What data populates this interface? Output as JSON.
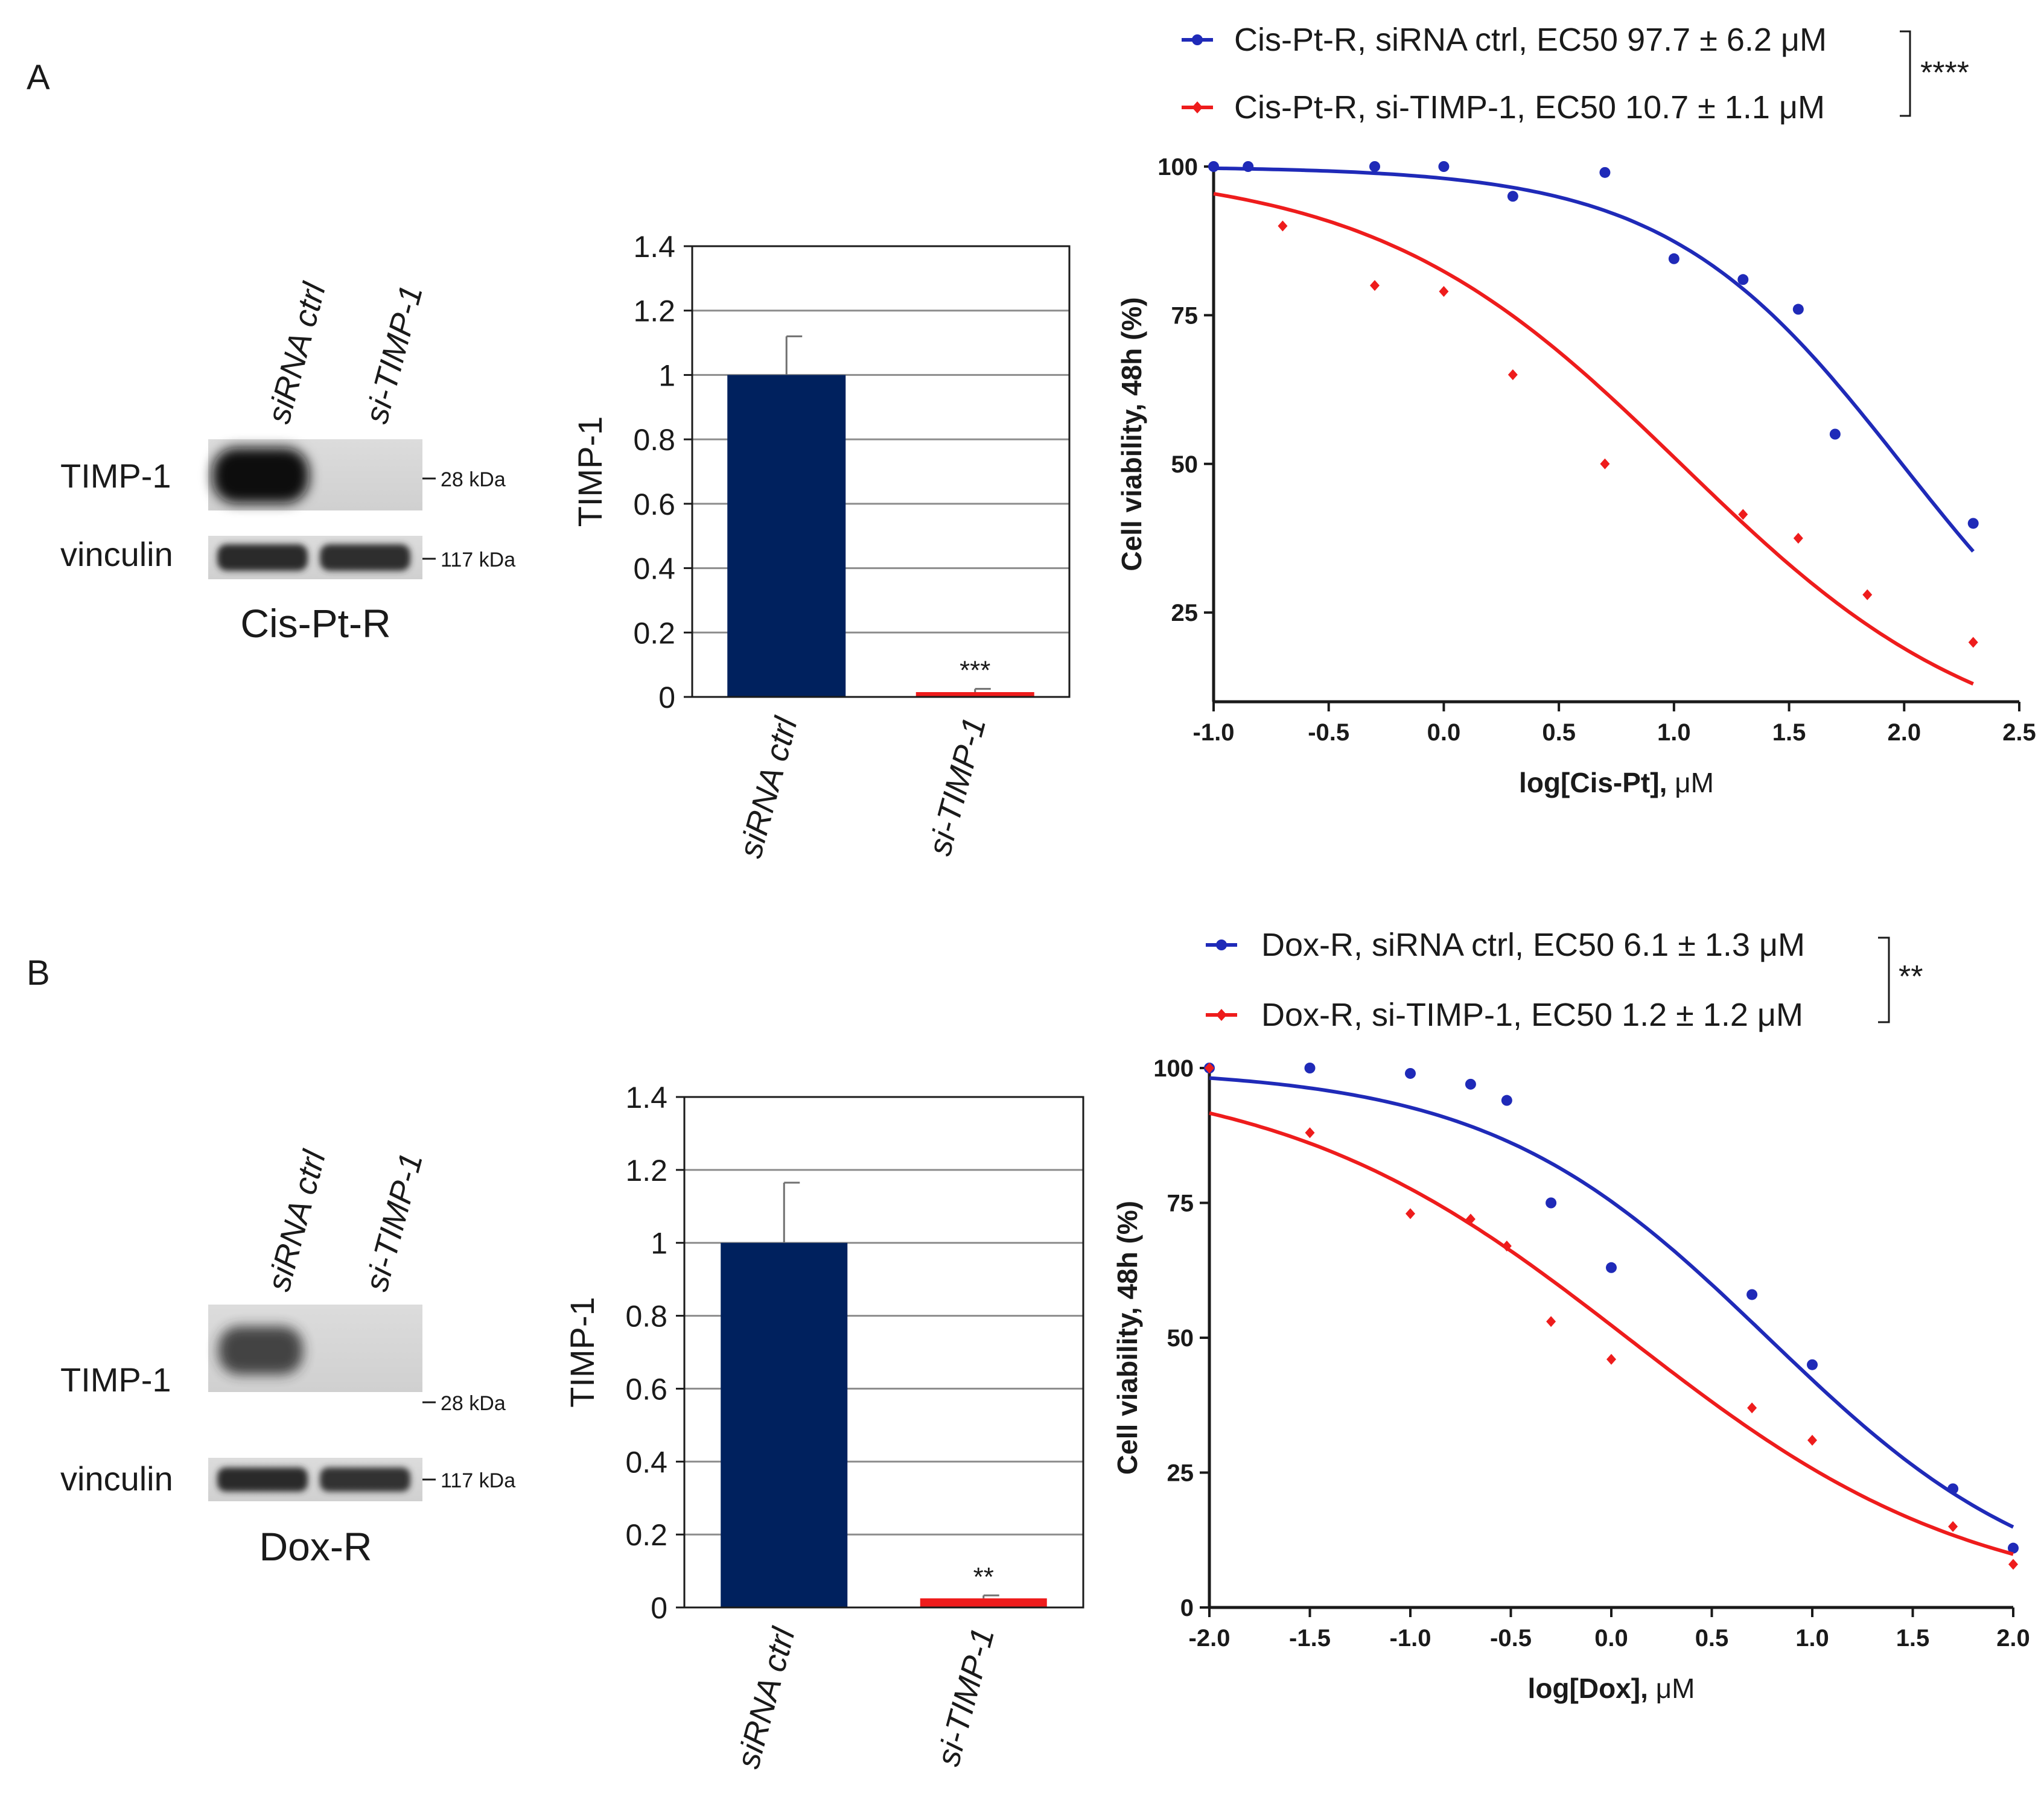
{
  "panels": [
    {
      "label": "A",
      "blot": {
        "lanes": [
          "siRNA ctrl",
          "si-TIMP-1"
        ],
        "rows": [
          "TIMP-1",
          "vinculin"
        ],
        "markers": [
          "28 kDa",
          "117 kDa"
        ],
        "caption": "Cis-Pt-R"
      },
      "legend": {
        "entries": [
          {
            "text": "Cis-Pt-R, siRNA ctrl, EC50 97.7 ± 6.2 μM",
            "color": "#1f2ab8"
          },
          {
            "text": "Cis-Pt-R, si-TIMP-1, EC50 10.7 ± 1.1 μM",
            "color": "#ee1c1c"
          }
        ],
        "significance": "****"
      }
    },
    {
      "label": "B",
      "blot": {
        "lanes": [
          "siRNA ctrl",
          "si-TIMP-1"
        ],
        "rows": [
          "TIMP-1",
          "vinculin"
        ],
        "markers": [
          "28 kDa",
          "117 kDa"
        ],
        "caption": "Dox-R"
      },
      "legend": {
        "entries": [
          {
            "text": "Dox-R, siRNA ctrl, EC50 6.1 ± 1.3 μM",
            "color": "#1f2ab8"
          },
          {
            "text": "Dox-R, si-TIMP-1, EC50 1.2 ± 1.2 μM",
            "color": "#ee1c1c"
          }
        ],
        "significance": "**"
      }
    }
  ],
  "chart_data": [
    {
      "type": "bar",
      "panel": "A",
      "categories": [
        "siRNA ctrl",
        "si-TIMP-1"
      ],
      "values": [
        1.0,
        0.015
      ],
      "errors": [
        0.12,
        0.01
      ],
      "colors": [
        "#00215e",
        "#ee1c1c"
      ],
      "annotations": [
        "",
        "***"
      ],
      "ylabel": "TIMP-1",
      "xlabel": "",
      "ylim": [
        0,
        1.4
      ],
      "yticks": [
        "0",
        "0.2",
        "0.4",
        "0.6",
        "0.8",
        "1",
        "1.2",
        "1.4"
      ],
      "grid": true
    },
    {
      "type": "scatter",
      "panel": "A",
      "xlabel_bold": "log[Cis-Pt],",
      "xlabel_unit": " μM",
      "ylabel": "Cell viability, 48h (%)",
      "xlim": [
        -1.0,
        2.5
      ],
      "ylim": [
        10,
        100
      ],
      "xticks": [
        "-1.0",
        "-0.5",
        "0.0",
        "0.5",
        "1.0",
        "1.5",
        "2.0",
        "2.5"
      ],
      "yticks": [
        "25",
        "50",
        "75",
        "100"
      ],
      "series": [
        {
          "name": "Cis-Pt-R, siRNA ctrl",
          "color": "#1f2ab8",
          "marker": "circle",
          "x": [
            -1.0,
            -0.85,
            -0.3,
            0.0,
            0.3,
            0.7,
            1.0,
            1.3,
            1.54,
            1.7,
            2.3
          ],
          "y": [
            100,
            100,
            100,
            100,
            95,
            99,
            84.5,
            81,
            76,
            55,
            40
          ],
          "fit": {
            "top": 100,
            "bottom": 0,
            "logEC50": 1.99,
            "hill": -0.85,
            "x_range": [
              -1.0,
              2.3
            ]
          }
        },
        {
          "name": "Cis-Pt-R, si-TIMP-1",
          "color": "#ee1c1c",
          "marker": "diamond",
          "x": [
            -0.7,
            -0.3,
            0.0,
            0.3,
            0.7,
            1.3,
            1.54,
            1.84,
            2.3
          ],
          "y": [
            90,
            80,
            79,
            65,
            50,
            41.5,
            37.5,
            28,
            20
          ],
          "fit": {
            "top": 100,
            "bottom": 0,
            "logEC50": 1.03,
            "hill": -0.65,
            "x_range": [
              -1.0,
              2.3
            ]
          }
        }
      ]
    },
    {
      "type": "bar",
      "panel": "B",
      "categories": [
        "siRNA ctrl",
        "si-TIMP-1"
      ],
      "values": [
        1.0,
        0.025
      ],
      "errors": [
        0.165,
        0.008
      ],
      "colors": [
        "#00215e",
        "#ee1c1c"
      ],
      "annotations": [
        "",
        "**"
      ],
      "ylabel": "TIMP-1",
      "xlabel": "",
      "ylim": [
        0,
        1.4
      ],
      "yticks": [
        "0",
        "0.2",
        "0.4",
        "0.6",
        "0.8",
        "1",
        "1.2",
        "1.4"
      ],
      "grid": true
    },
    {
      "type": "scatter",
      "panel": "B",
      "xlabel_bold": "log[Dox],",
      "xlabel_unit": " μM",
      "ylabel": "Cell viability, 48h (%)",
      "xlim": [
        -2.0,
        2.0
      ],
      "ylim": [
        0,
        100
      ],
      "xticks": [
        "-2.0",
        "-1.5",
        "-1.0",
        "-0.5",
        "0.0",
        "0.5",
        "1.0",
        "1.5",
        "2.0"
      ],
      "yticks": [
        "0",
        "25",
        "50",
        "75",
        "100"
      ],
      "series": [
        {
          "name": "Dox-R, siRNA ctrl",
          "color": "#1f2ab8",
          "marker": "circle",
          "x": [
            -2.0,
            -1.5,
            -1.0,
            -0.7,
            -0.52,
            -0.3,
            0.0,
            0.7,
            1.0,
            1.7,
            2.0
          ],
          "y": [
            100,
            100,
            99,
            97,
            94,
            75,
            63,
            58,
            45,
            22,
            11
          ],
          "fit": {
            "top": 100,
            "bottom": 0,
            "logEC50": 0.78,
            "hill": -0.62,
            "x_range": [
              -2.0,
              2.0
            ]
          }
        },
        {
          "name": "Dox-R, si-TIMP-1",
          "color": "#ee1c1c",
          "marker": "diamond",
          "x": [
            -2.0,
            -1.5,
            -1.0,
            -0.7,
            -0.52,
            -0.3,
            0.0,
            0.7,
            1.0,
            1.7,
            2.0
          ],
          "y": [
            100,
            88,
            73,
            72,
            67,
            53,
            46,
            37,
            31,
            15,
            8
          ],
          "fit": {
            "top": 100,
            "bottom": 0,
            "logEC50": 0.08,
            "hill": -0.5,
            "x_range": [
              -2.0,
              2.0
            ]
          }
        }
      ]
    }
  ]
}
